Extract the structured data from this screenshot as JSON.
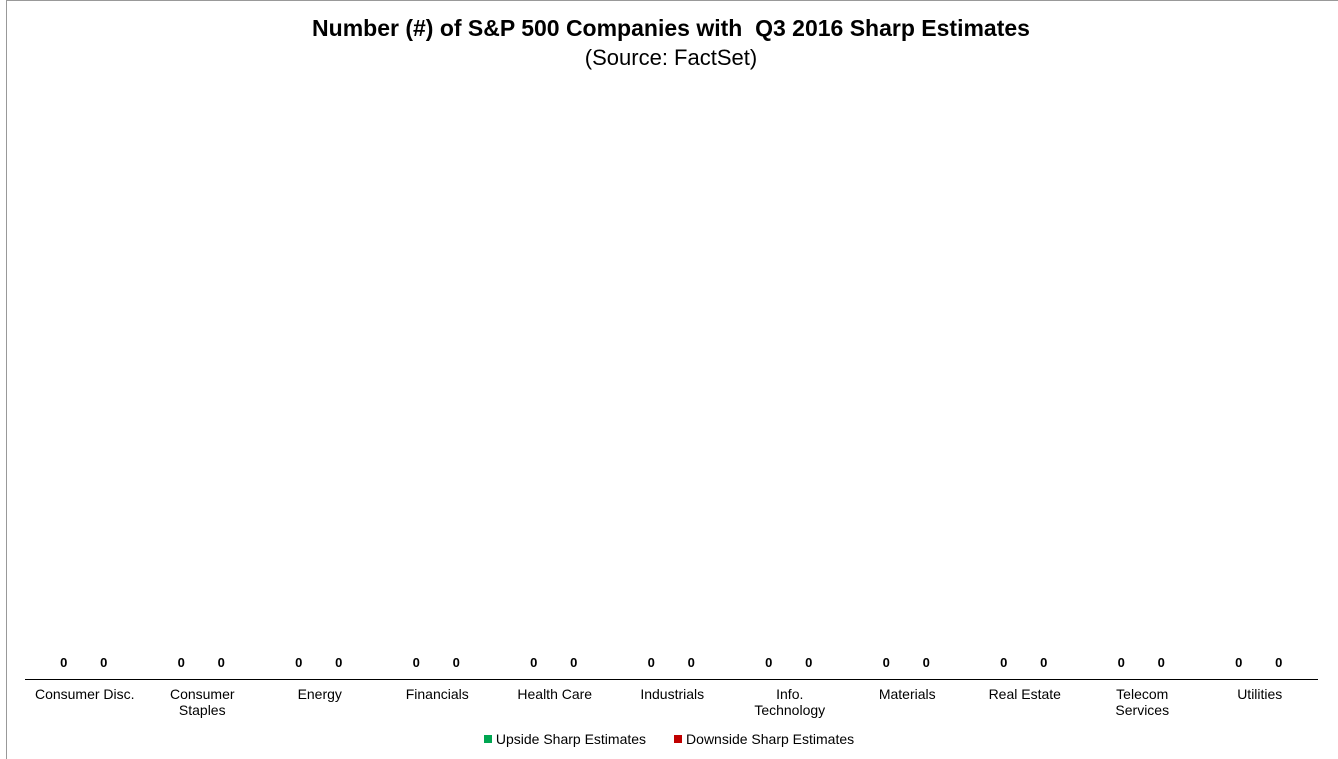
{
  "chart_data": {
    "type": "bar",
    "title": "Number (#) of S&P 500 Companies with  Q3 2016 Sharp Estimates",
    "subtitle": "(Source: FactSet)",
    "categories": [
      "Consumer Disc.",
      "Consumer Staples",
      "Energy",
      "Financials",
      "Health Care",
      "Industrials",
      "Info. Technology",
      "Materials",
      "Real Estate",
      "Telecom Services",
      "Utilities"
    ],
    "series": [
      {
        "name": "Upside Sharp Estimates",
        "color": "#00a651",
        "values": [
          0,
          0,
          0,
          0,
          0,
          0,
          0,
          0,
          0,
          0,
          0
        ]
      },
      {
        "name": "Downside Sharp Estimates",
        "color": "#c00000",
        "values": [
          0,
          0,
          0,
          0,
          0,
          0,
          0,
          0,
          0,
          0,
          0
        ]
      }
    ],
    "legend": "bottom"
  }
}
